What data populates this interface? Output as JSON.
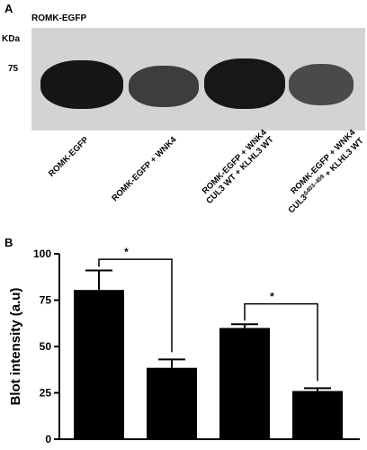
{
  "panel_a": {
    "label": "A",
    "blot_title": "ROMK-EGFP",
    "unit_label": "KDa",
    "marker": "75",
    "lanes": [
      {
        "line1": "ROMK-EGFP",
        "line2": "",
        "line2_pre": "",
        "line2_sup": "",
        "line2_post": ""
      },
      {
        "line1": "ROMK-EGFP + WNK4",
        "line2": "",
        "line2_pre": "",
        "line2_sup": "",
        "line2_post": ""
      },
      {
        "line1": "ROMK-EGFP + WNK4",
        "line2": "CUL3 WT + KLHL3 WT",
        "line2_pre": "",
        "line2_sup": "",
        "line2_post": ""
      },
      {
        "line1": "ROMK-EGFP + WNK4",
        "line2": "",
        "line2_pre": "CUL3",
        "line2_sup": "Δ403–459",
        "line2_post": " + KLHL3 WT"
      }
    ]
  },
  "panel_b": {
    "label": "B"
  },
  "chart_data": {
    "type": "bar",
    "categories": [
      "ROMK-EGFP",
      "ROMK-EGFP + WNK4",
      "ROMK-EGFP + WNK4 CUL3 WT + KLHL3 WT",
      "ROMK-EGFP + WNK4 CUL3Δ403–459 + KLHL3 WT"
    ],
    "values": [
      80.5,
      38.5,
      60,
      26
    ],
    "errors": [
      10.5,
      4.5,
      2,
      1.5
    ],
    "ylabel": "Blot intensity (a.u)",
    "xlabel": "",
    "ylim": [
      0,
      100
    ],
    "yticks": [
      0,
      25,
      50,
      75,
      100
    ],
    "grid": false,
    "bar_color": "#000000",
    "significance": [
      {
        "from": 0,
        "to": 1,
        "label": "*"
      },
      {
        "from": 2,
        "to": 3,
        "label": "*"
      }
    ]
  }
}
